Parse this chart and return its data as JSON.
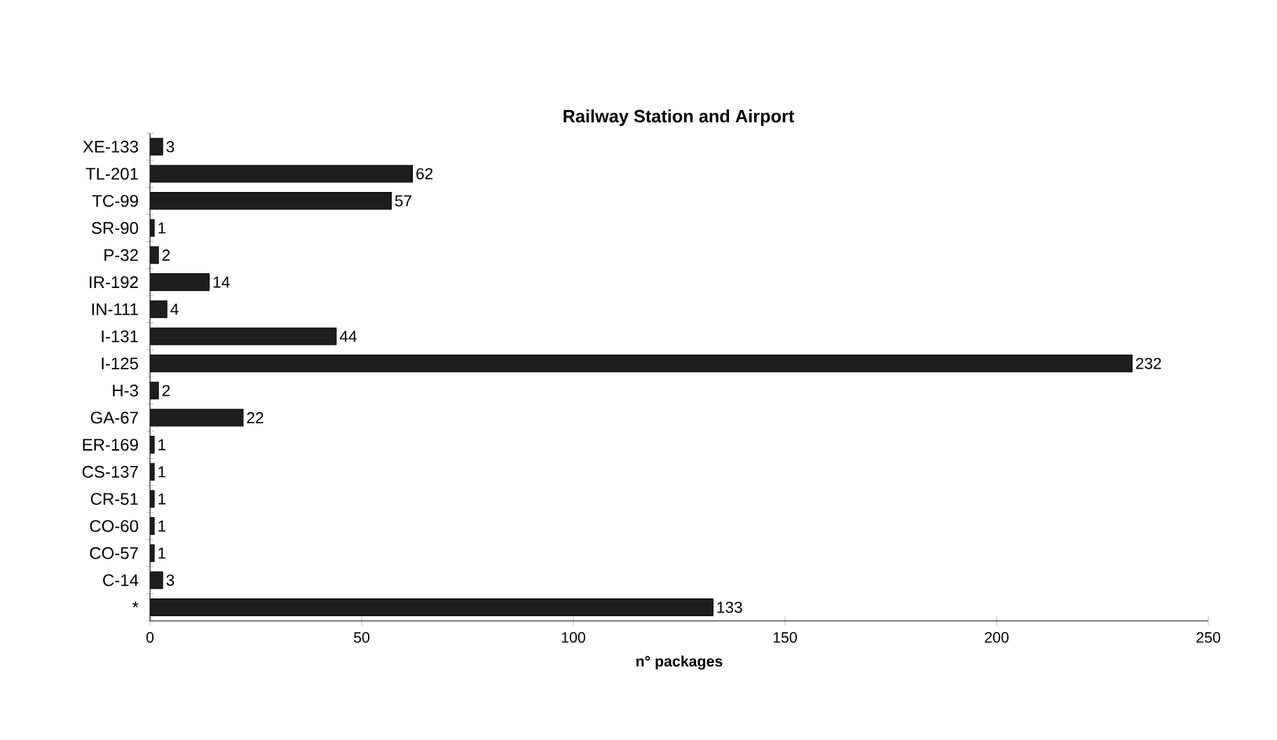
{
  "chart_data": {
    "type": "bar",
    "orientation": "horizontal",
    "title": "Railway Station and Airport",
    "xlabel": "n° packages",
    "categories": [
      "XE-133",
      "TL-201",
      "TC-99",
      "SR-90",
      "P-32",
      "IR-192",
      "IN-111",
      "I-131",
      "I-125",
      "H-3",
      "GA-67",
      "ER-169",
      "CS-137",
      "CR-51",
      "CO-60",
      "CO-57",
      "C-14",
      "*"
    ],
    "values": [
      3,
      62,
      57,
      1,
      2,
      14,
      4,
      44,
      232,
      2,
      22,
      1,
      1,
      1,
      1,
      1,
      3,
      133
    ],
    "color": "#1e1e1e",
    "xlim": [
      0,
      250
    ],
    "xticks": [
      0,
      50,
      100,
      150,
      200,
      250
    ],
    "data_labels": true
  }
}
